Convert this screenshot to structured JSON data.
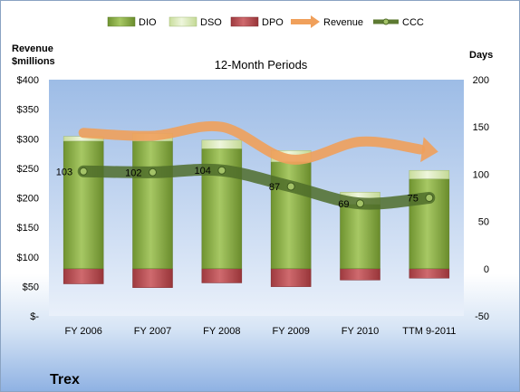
{
  "chart_data": {
    "type": "bar",
    "title": "12-Month Periods",
    "company": "Trex",
    "y_left_label": [
      "Revenue",
      "$millions"
    ],
    "y_right_label": "Days",
    "y_left_ticks": [
      "$-",
      "$50",
      "$100",
      "$150",
      "$200",
      "$250",
      "$300",
      "$350",
      "$400"
    ],
    "y_left_range": [
      0,
      400
    ],
    "y_right_ticks": [
      "-50",
      "0",
      "50",
      "100",
      "150",
      "200"
    ],
    "y_right_range": [
      -50,
      200
    ],
    "categories": [
      "FY 2006",
      "FY 2007",
      "FY 2008",
      "FY 2009",
      "FY 2010",
      "TTM 9-2011"
    ],
    "legend": [
      {
        "name": "DIO",
        "kind": "bar",
        "color": "#7fa33c"
      },
      {
        "name": "DSO",
        "kind": "bar",
        "color": "#d9eab6"
      },
      {
        "name": "DPO",
        "kind": "bar",
        "color": "#b3454a"
      },
      {
        "name": "Revenue",
        "kind": "arrow",
        "color": "#f0a05b"
      },
      {
        "name": "CCC",
        "kind": "line",
        "color": "#5d7a32"
      }
    ],
    "series": [
      {
        "name": "DIO",
        "values": [
          135,
          135,
          127,
          113,
          68,
          95
        ]
      },
      {
        "name": "DSO",
        "values": [
          5,
          8,
          9,
          12,
          13,
          9
        ]
      },
      {
        "name": "DPO",
        "values": [
          -16,
          -20,
          -15,
          -19,
          -12,
          -10
        ]
      },
      {
        "name": "Revenue",
        "values": [
          310,
          305,
          320,
          265,
          295,
          280
        ]
      },
      {
        "name": "CCC",
        "values": [
          103,
          102,
          104,
          87,
          69,
          75
        ]
      }
    ],
    "ccc_labels": [
      "103",
      "102",
      "104",
      "87",
      "69",
      "75"
    ]
  }
}
